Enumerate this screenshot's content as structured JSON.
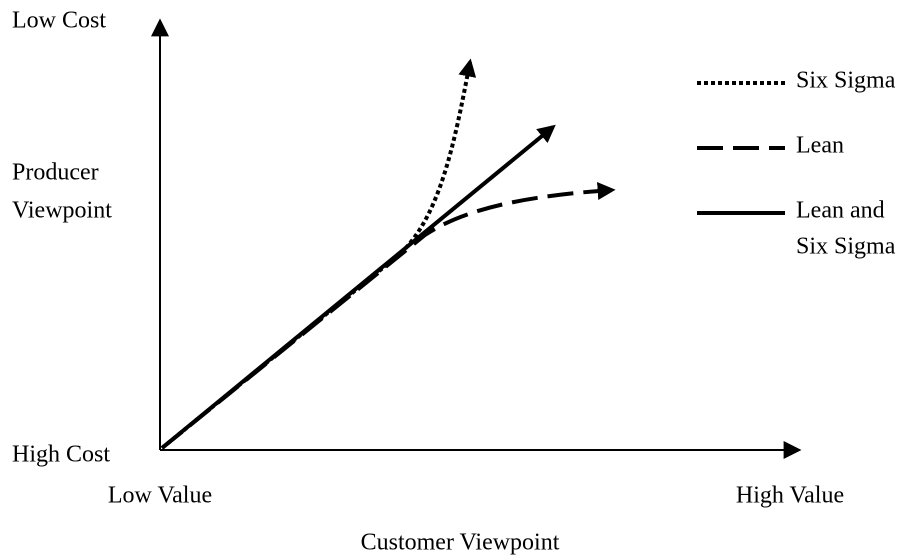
{
  "y_axis": {
    "top_label": "Low Cost",
    "title_lines": [
      "Producer",
      "Viewpoint"
    ],
    "bottom_label": "High Cost"
  },
  "x_axis": {
    "left_label": "Low Value",
    "right_label": "High Value",
    "title": "Customer Viewpoint"
  },
  "legend": [
    {
      "lines": [
        "Six Sigma"
      ]
    },
    {
      "lines": [
        "Lean"
      ]
    },
    {
      "lines": [
        "Lean and",
        "Six Sigma"
      ]
    }
  ]
}
